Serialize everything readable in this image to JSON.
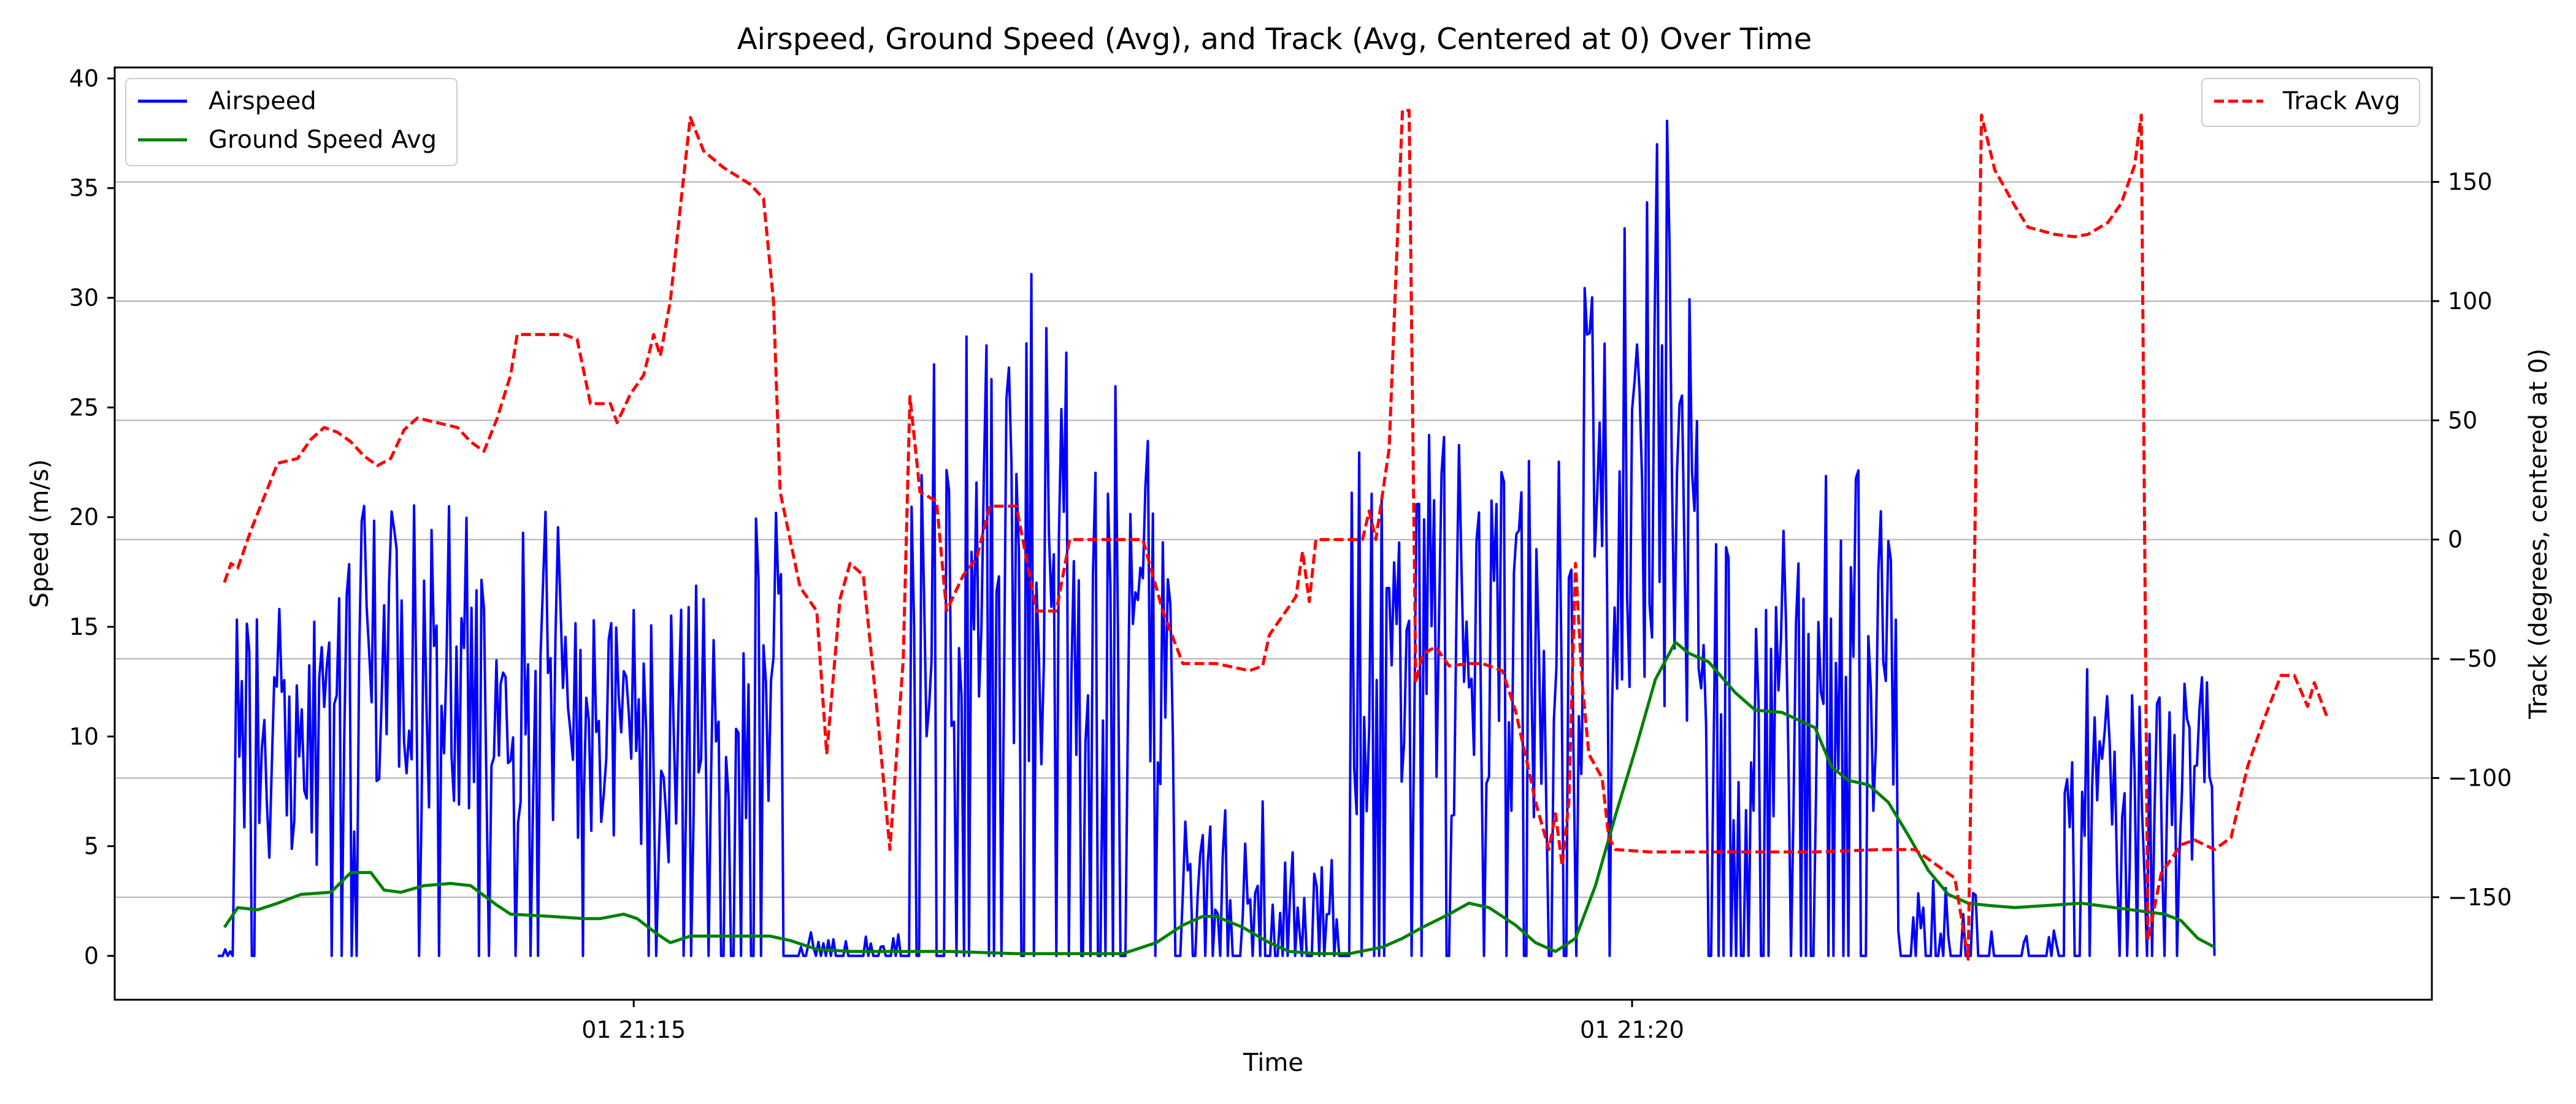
{
  "chart_data": {
    "type": "line",
    "title": "Airspeed, Ground Speed (Avg), and Track (Avg, Centered at 0) Over Time",
    "xlabel": "Time",
    "ylabel_left": "Speed (m/s)",
    "ylabel_right": "Track (degrees, centered at 0)",
    "x_range": [
      "01 21:12:55",
      "01 21:24:45"
    ],
    "x_ticks": [
      {
        "label": "01 21:15",
        "t": 125
      },
      {
        "label": "01 21:20",
        "t": 425
      }
    ],
    "ylim_left": [
      -2,
      40.5
    ],
    "yticks_left": [
      0,
      5,
      10,
      15,
      20,
      25,
      30,
      35,
      40
    ],
    "ylim_right": [
      -193,
      198
    ],
    "yticks_right": [
      -150,
      -100,
      -50,
      0,
      50,
      100,
      150
    ],
    "grid": "horizontal-right-axis",
    "legend_left": "top-left",
    "legend_right": "top-right",
    "series": [
      {
        "name": "Airspeed",
        "axis": "left",
        "color": "#0000ff",
        "style": "solid",
        "mode": "noise",
        "segments": [
          {
            "x0": 0,
            "x1": 5,
            "amp": 0.3,
            "p": 0.2
          },
          {
            "x0": 5,
            "x1": 35,
            "amp": 13.5,
            "p": 0.88
          },
          {
            "x0": 35,
            "x1": 85,
            "amp": 17.5,
            "p": 0.85
          },
          {
            "x0": 85,
            "x1": 88,
            "amp": 14.5,
            "p": 0.7
          },
          {
            "x0": 88,
            "x1": 110,
            "amp": 17.5,
            "p": 0.8
          },
          {
            "x0": 110,
            "x1": 140,
            "amp": 14,
            "p": 0.95
          },
          {
            "x0": 140,
            "x1": 170,
            "amp": 19,
            "p": 0.75
          },
          {
            "x0": 170,
            "x1": 207,
            "amp": 1.0,
            "p": 0.3
          },
          {
            "x0": 207,
            "x1": 260,
            "amp": 27,
            "p": 0.7
          },
          {
            "x0": 260,
            "x1": 290,
            "amp": 24,
            "p": 0.65
          },
          {
            "x0": 290,
            "x1": 325,
            "amp": 6,
            "p": 0.4
          },
          {
            "x0": 325,
            "x1": 340,
            "amp": 4,
            "p": 0.5
          },
          {
            "x0": 340,
            "x1": 410,
            "amp": 21,
            "p": 0.78
          },
          {
            "x0": 410,
            "x1": 445,
            "amp": 33,
            "p": 0.97
          },
          {
            "x0": 445,
            "x1": 505,
            "amp": 19,
            "p": 0.75
          },
          {
            "x0": 505,
            "x1": 530,
            "amp": 3,
            "p": 0.35
          },
          {
            "x0": 530,
            "x1": 555,
            "amp": 1.2,
            "p": 0.2
          },
          {
            "x0": 555,
            "x1": 600,
            "amp": 11.5,
            "p": 0.7
          },
          {
            "x0": 600,
            "x1": 600,
            "amp": 0,
            "p": 0
          }
        ]
      },
      {
        "name": "Ground Speed Avg",
        "axis": "left",
        "color": "#008000",
        "style": "solid",
        "points": [
          [
            2,
            1.3
          ],
          [
            6,
            2.2
          ],
          [
            12,
            2.1
          ],
          [
            18,
            2.4
          ],
          [
            25,
            2.8
          ],
          [
            34,
            2.9
          ],
          [
            40,
            3.8
          ],
          [
            46,
            3.8
          ],
          [
            50,
            3.0
          ],
          [
            55,
            2.9
          ],
          [
            62,
            3.2
          ],
          [
            70,
            3.3
          ],
          [
            76,
            3.2
          ],
          [
            84,
            2.3
          ],
          [
            88,
            1.9
          ],
          [
            100,
            1.8
          ],
          [
            110,
            1.7
          ],
          [
            115,
            1.7
          ],
          [
            122,
            1.9
          ],
          [
            126,
            1.7
          ],
          [
            132,
            1.0
          ],
          [
            136,
            0.6
          ],
          [
            142,
            0.9
          ],
          [
            150,
            0.9
          ],
          [
            166,
            0.9
          ],
          [
            172,
            0.7
          ],
          [
            180,
            0.3
          ],
          [
            190,
            0.2
          ],
          [
            200,
            0.2
          ],
          [
            220,
            0.2
          ],
          [
            240,
            0.1
          ],
          [
            260,
            0.1
          ],
          [
            272,
            0.1
          ],
          [
            282,
            0.6
          ],
          [
            290,
            1.4
          ],
          [
            296,
            1.8
          ],
          [
            300,
            1.8
          ],
          [
            308,
            1.3
          ],
          [
            316,
            0.6
          ],
          [
            322,
            0.2
          ],
          [
            330,
            0.1
          ],
          [
            340,
            0.1
          ],
          [
            350,
            0.4
          ],
          [
            356,
            0.8
          ],
          [
            362,
            1.3
          ],
          [
            370,
            1.9
          ],
          [
            376,
            2.4
          ],
          [
            382,
            2.2
          ],
          [
            390,
            1.4
          ],
          [
            396,
            0.6
          ],
          [
            402,
            0.2
          ],
          [
            408,
            0.8
          ],
          [
            414,
            3.2
          ],
          [
            420,
            6.4
          ],
          [
            426,
            9.4
          ],
          [
            432,
            12.6
          ],
          [
            438,
            14.3
          ],
          [
            442,
            13.8
          ],
          [
            448,
            13.4
          ],
          [
            456,
            12.0
          ],
          [
            462,
            11.2
          ],
          [
            470,
            11.1
          ],
          [
            480,
            10.4
          ],
          [
            485,
            8.6
          ],
          [
            490,
            8.0
          ],
          [
            496,
            7.8
          ],
          [
            502,
            7.0
          ],
          [
            508,
            5.5
          ],
          [
            514,
            3.9
          ],
          [
            520,
            2.8
          ],
          [
            526,
            2.4
          ],
          [
            532,
            2.3
          ],
          [
            540,
            2.2
          ],
          [
            550,
            2.3
          ],
          [
            560,
            2.4
          ],
          [
            570,
            2.2
          ],
          [
            580,
            2.0
          ],
          [
            585,
            1.9
          ],
          [
            590,
            1.6
          ],
          [
            595,
            0.8
          ],
          [
            600,
            0.4
          ]
        ]
      },
      {
        "name": "Track Avg",
        "axis": "right",
        "color": "#ff0000",
        "style": "dashed",
        "points": [
          [
            2,
            -18
          ],
          [
            4,
            -10
          ],
          [
            6,
            -12
          ],
          [
            10,
            4
          ],
          [
            14,
            18
          ],
          [
            18,
            32
          ],
          [
            24,
            34
          ],
          [
            28,
            42
          ],
          [
            32,
            47
          ],
          [
            36,
            45
          ],
          [
            40,
            41
          ],
          [
            44,
            35
          ],
          [
            48,
            31
          ],
          [
            52,
            34
          ],
          [
            56,
            46
          ],
          [
            60,
            51
          ],
          [
            66,
            49
          ],
          [
            72,
            47
          ],
          [
            76,
            41
          ],
          [
            80,
            37
          ],
          [
            84,
            51
          ],
          [
            88,
            69
          ],
          [
            90,
            86
          ],
          [
            104,
            86
          ],
          [
            108,
            84
          ],
          [
            112,
            57
          ],
          [
            118,
            57
          ],
          [
            120,
            49
          ],
          [
            124,
            61
          ],
          [
            128,
            69
          ],
          [
            131,
            86
          ],
          [
            133,
            77
          ],
          [
            136,
            100
          ],
          [
            140,
            152
          ],
          [
            142,
            177
          ],
          [
            146,
            163
          ],
          [
            152,
            156
          ],
          [
            160,
            149
          ],
          [
            164,
            143
          ],
          [
            167,
            100
          ],
          [
            169,
            20
          ],
          [
            175,
            -20
          ],
          [
            180,
            -30
          ],
          [
            183,
            -90
          ],
          [
            187,
            -25
          ],
          [
            190,
            -10
          ],
          [
            194,
            -15
          ],
          [
            198,
            -70
          ],
          [
            202,
            -130
          ],
          [
            206,
            -50
          ],
          [
            208,
            60
          ],
          [
            211,
            20
          ],
          [
            216,
            16
          ],
          [
            219,
            -30
          ],
          [
            224,
            -15
          ],
          [
            228,
            -8
          ],
          [
            232,
            14
          ],
          [
            240,
            14
          ],
          [
            246,
            -30
          ],
          [
            252,
            -30
          ],
          [
            256,
            0
          ],
          [
            270,
            0
          ],
          [
            278,
            0
          ],
          [
            284,
            -30
          ],
          [
            290,
            -52
          ],
          [
            300,
            -52
          ],
          [
            310,
            -55
          ],
          [
            314,
            -53
          ],
          [
            316,
            -40
          ],
          [
            320,
            -32
          ],
          [
            324,
            -24
          ],
          [
            326,
            -5
          ],
          [
            328,
            -26
          ],
          [
            330,
            0
          ],
          [
            340,
            0
          ],
          [
            344,
            0
          ],
          [
            346,
            12
          ],
          [
            348,
            0
          ],
          [
            352,
            38
          ],
          [
            356,
            180
          ],
          [
            358,
            180
          ],
          [
            360,
            -60
          ],
          [
            362,
            -48
          ],
          [
            366,
            -45
          ],
          [
            370,
            -53
          ],
          [
            376,
            -52
          ],
          [
            380,
            -52
          ],
          [
            386,
            -55
          ],
          [
            390,
            -72
          ],
          [
            394,
            -97
          ],
          [
            396,
            -110
          ],
          [
            400,
            -130
          ],
          [
            402,
            -115
          ],
          [
            404,
            -137
          ],
          [
            406,
            -110
          ],
          [
            408,
            -10
          ],
          [
            410,
            -60
          ],
          [
            412,
            -90
          ],
          [
            416,
            -100
          ],
          [
            418,
            -125
          ],
          [
            420,
            -130
          ],
          [
            430,
            -131
          ],
          [
            440,
            -131
          ],
          [
            460,
            -131
          ],
          [
            480,
            -131
          ],
          [
            500,
            -130
          ],
          [
            510,
            -130
          ],
          [
            516,
            -136
          ],
          [
            522,
            -142
          ],
          [
            526,
            -176
          ],
          [
            530,
            178
          ],
          [
            534,
            155
          ],
          [
            540,
            140
          ],
          [
            544,
            131
          ],
          [
            552,
            128
          ],
          [
            558,
            127
          ],
          [
            562,
            128
          ],
          [
            568,
            133
          ],
          [
            572,
            141
          ],
          [
            576,
            157
          ],
          [
            578,
            178
          ],
          [
            580,
            -168
          ],
          [
            584,
            -140
          ],
          [
            590,
            -128
          ],
          [
            594,
            -126
          ],
          [
            600,
            -130
          ],
          [
            605,
            -125
          ],
          [
            610,
            -95
          ],
          [
            615,
            -75
          ],
          [
            620,
            -57
          ],
          [
            624,
            -57
          ],
          [
            628,
            -70
          ],
          [
            630,
            -60
          ],
          [
            634,
            -75
          ]
        ]
      }
    ]
  }
}
